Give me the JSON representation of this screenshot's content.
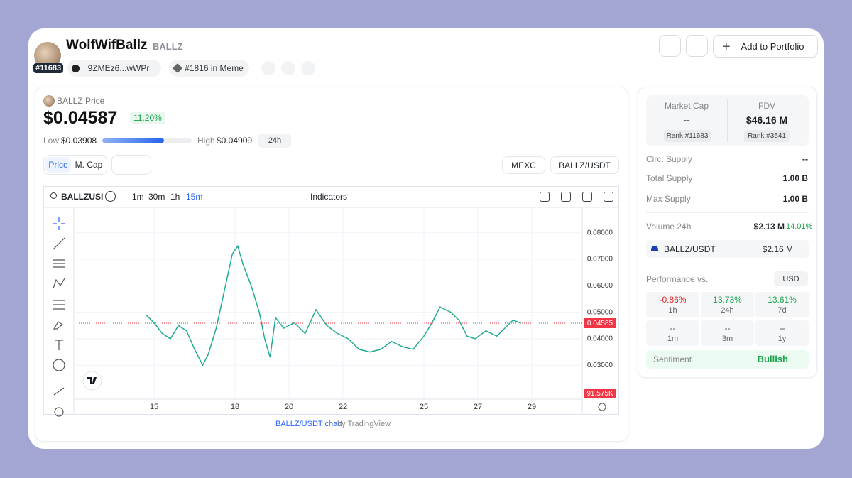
{
  "header": {
    "name": "WolfWifBallz",
    "symbol": "BALLZ",
    "rank_badge": "#11683",
    "contract": "9ZMEz6...wWPr",
    "category": "#1816 in Meme",
    "add_button": "Add to Portfolio"
  },
  "price_panel": {
    "label": "BALLZ Price",
    "price": "$0.04587",
    "change": "11.20%",
    "low_label": "Low",
    "low": "$0.03908",
    "high_label": "High",
    "high": "$0.04909",
    "range": "24h",
    "tabs": [
      "Price",
      "M. Cap"
    ],
    "exchange": "MEXC",
    "pair": "BALLZ/USDT"
  },
  "toolbar": {
    "symbol": "BALLZUSI",
    "intervals": [
      "1m",
      "30m",
      "1h",
      "15m"
    ],
    "indicators": "Indicators"
  },
  "chart_data": {
    "type": "line",
    "color": "#22ab94",
    "x": [
      14.7,
      15.0,
      15.3,
      15.6,
      15.9,
      16.2,
      16.5,
      16.8,
      17.0,
      17.3,
      17.6,
      17.9,
      18.1,
      18.3,
      18.6,
      18.9,
      19.1,
      19.3,
      19.5,
      19.8,
      20.2,
      20.6,
      21.0,
      21.4,
      21.8,
      22.2,
      22.6,
      23.0,
      23.4,
      23.8,
      24.2,
      24.6,
      25.0,
      25.3,
      25.6,
      26.0,
      26.3,
      26.6,
      26.9,
      27.3,
      27.7,
      28.0,
      28.3,
      28.6
    ],
    "values": [
      0.049,
      0.046,
      0.042,
      0.04,
      0.045,
      0.043,
      0.036,
      0.03,
      0.034,
      0.044,
      0.058,
      0.072,
      0.075,
      0.068,
      0.06,
      0.05,
      0.04,
      0.033,
      0.048,
      0.044,
      0.046,
      0.042,
      0.051,
      0.045,
      0.042,
      0.04,
      0.036,
      0.035,
      0.036,
      0.039,
      0.037,
      0.036,
      0.041,
      0.046,
      0.052,
      0.05,
      0.047,
      0.041,
      0.04,
      0.043,
      0.041,
      0.044,
      0.047,
      0.0459
    ],
    "xlim": [
      12.05,
      30.87
    ],
    "xticks": [
      15,
      18,
      20,
      22,
      25,
      27,
      29
    ],
    "ylim": [
      0.0172,
      0.0893
    ],
    "yticks": [
      {
        "value": 0.03,
        "label": "0.03000"
      },
      {
        "value": 0.04,
        "label": "0.04000"
      },
      {
        "value": 0.05,
        "label": "0.05000"
      },
      {
        "value": 0.06,
        "label": "0.06000"
      },
      {
        "value": 0.07,
        "label": "0.07000"
      },
      {
        "value": 0.08,
        "label": "0.08000"
      }
    ],
    "grid": true,
    "last_price_label": "0.04585",
    "volume_label": "91.575K",
    "footer_link": "BALLZ/USDT chart",
    "footer_by": "by TradingView"
  },
  "stats": {
    "market_cap_label": "Market Cap",
    "market_cap": "--",
    "market_cap_rank": "Rank #11683",
    "fdv_label": "FDV",
    "fdv": "$46.16 M",
    "fdv_rank": "Rank #3541",
    "rows": [
      [
        "Circ. Supply",
        "--"
      ],
      [
        "Total Supply",
        "1.00 B"
      ],
      [
        "Max Supply",
        "1.00 B"
      ]
    ],
    "volume_label": "Volume 24h",
    "volume": "$2.13 M",
    "volume_change": "14.01%",
    "pair": "BALLZ/USDT",
    "pair_volume": "$2.16 M",
    "performance_label": "Performance vs.",
    "currency": "USD",
    "performance": [
      [
        "-0.86%",
        "1h"
      ],
      [
        "13.73%",
        "24h"
      ],
      [
        "13.61%",
        "7d"
      ],
      [
        "--",
        "1m"
      ],
      [
        "--",
        "3m"
      ],
      [
        "--",
        "1y"
      ]
    ],
    "sentiment_label": "Sentiment",
    "sentiment": "Bullish"
  }
}
